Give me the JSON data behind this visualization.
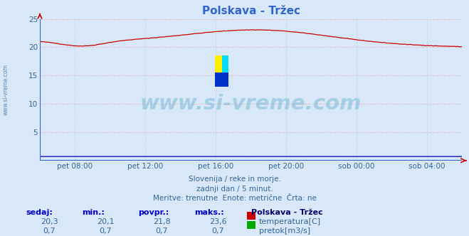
{
  "title": "Polskava - Tržec",
  "bg_color": "#d8e8f8",
  "plot_bg_color": "#d8e8f8",
  "grid_color_h": "#e8c0c0",
  "grid_color_v": "#c8d8e8",
  "watermark": "www.si-vreme.com",
  "subtitle_lines": [
    "Slovenija / reke in morje.",
    "zadnji dan / 5 minut.",
    "Meritve: trenutne  Enote: metrične  Črta: ne"
  ],
  "xlabel_ticks": [
    "pet 08:00",
    "pet 12:00",
    "pet 16:00",
    "pet 20:00",
    "sob 00:00",
    "sob 04:00"
  ],
  "xlabel_tick_positions": [
    0.0833,
    0.25,
    0.4167,
    0.5833,
    0.75,
    0.9167
  ],
  "ylim": [
    0,
    25
  ],
  "yticks": [
    0,
    5,
    10,
    15,
    20,
    25
  ],
  "temp_color": "#cc0000",
  "flow_color": "#0000bb",
  "legend_station": "Polskava - Tržec",
  "legend_temp_color": "#cc0000",
  "legend_flow_color": "#00aa00",
  "sedaj": [
    20.3,
    0.7
  ],
  "min_vals": [
    20.1,
    0.7
  ],
  "povpr_vals": [
    21.8,
    0.7
  ],
  "maks_vals": [
    23.6,
    0.7
  ],
  "table_labels": [
    "sedaj:",
    "min.:",
    "povpr.:",
    "maks.:"
  ],
  "n_points": 288,
  "logo_yellow": "#ffee00",
  "logo_cyan": "#00ddff",
  "logo_blue": "#0033cc",
  "logo_teal": "#009999",
  "text_blue": "#336699",
  "label_blue": "#3366bb",
  "header_blue": "#0000cc"
}
